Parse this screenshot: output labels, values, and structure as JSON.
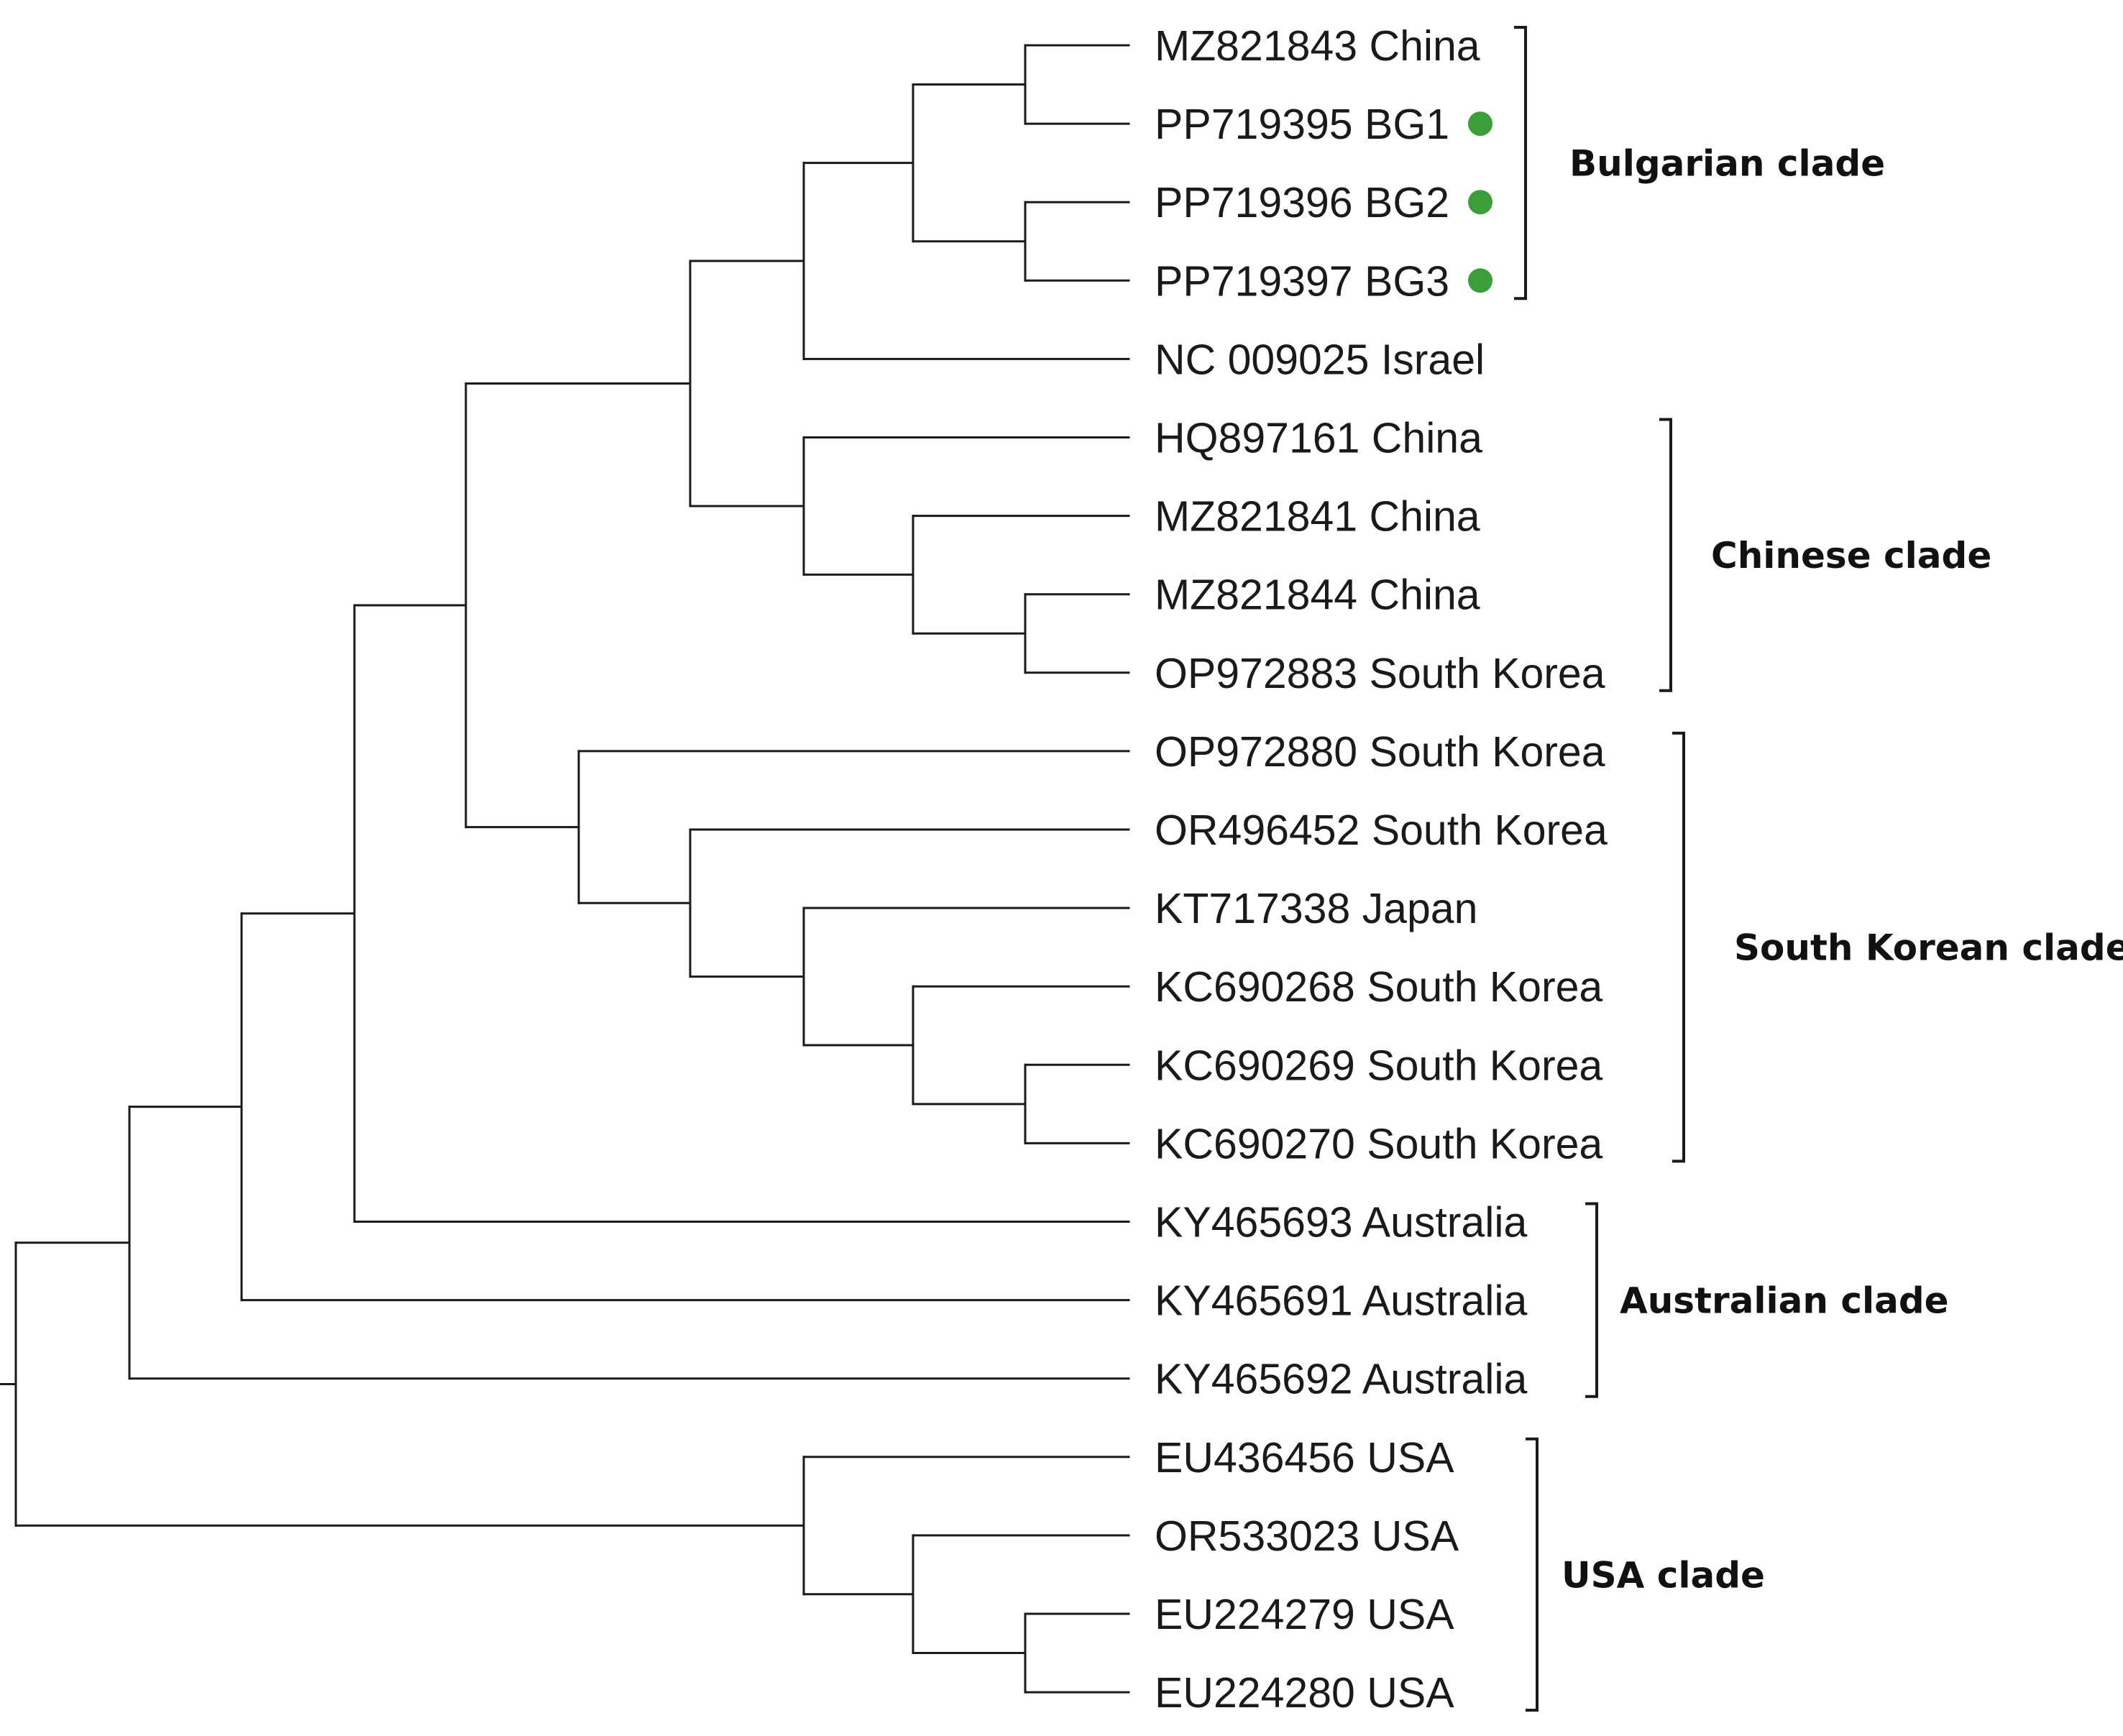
{
  "tree": {
    "taxa": [
      "MZ821843 China",
      "PP719395 BG1",
      "PP719396 BG2",
      "PP719397 BG3",
      "NC 009025 Israel",
      "HQ897161 China",
      "MZ821841 China",
      "MZ821844 China",
      "OP972883 South Korea",
      "OP972880 South Korea",
      "OR496452 South Korea",
      "KT717338 Japan",
      "KC690268 South Korea",
      "KC690269 South Korea",
      "KC690270 South Korea",
      "KY465693 Australia",
      "KY465691 Australia",
      "KY465692 Australia",
      "EU436456 USA",
      "OR533023 USA",
      "EU224279 USA",
      "EU224280 USA"
    ],
    "marked_taxa": [
      1,
      2,
      3
    ],
    "marker_color": "#3a9e3a",
    "clades": [
      {
        "label": "Bulgarian clade",
        "first": 0,
        "last": 3
      },
      {
        "label": "Chinese clade",
        "first": 5,
        "last": 8
      },
      {
        "label": "South Korean clade",
        "first": 9,
        "last": 14
      },
      {
        "label": "Australian clade",
        "first": 15,
        "last": 17
      },
      {
        "label": "USA clade",
        "first": 18,
        "last": 21
      }
    ]
  }
}
